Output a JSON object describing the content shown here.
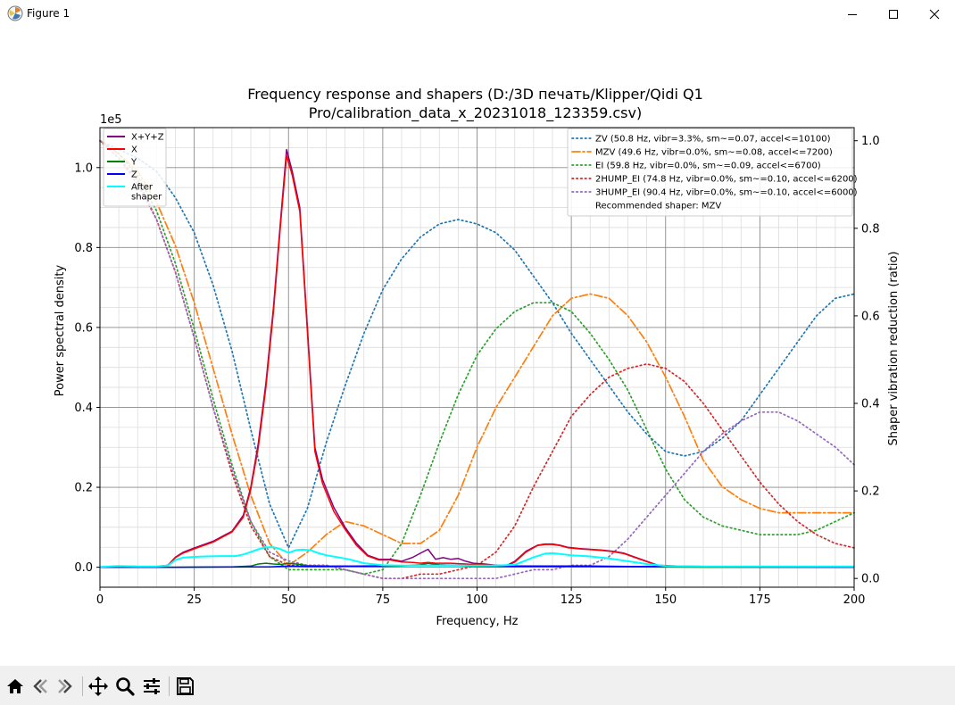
{
  "window": {
    "title": "Figure 1"
  },
  "toolbar": {
    "buttons": [
      "home-icon",
      "back-icon",
      "forward-icon",
      "pan-icon",
      "zoom-icon",
      "configure-subplots-icon",
      "save-icon"
    ]
  },
  "chart_data": {
    "type": "line",
    "title": "Frequency response and shapers (D:/3D печать/Klipper/Qidi Q1\nPro/calibration_data_x_20231018_123359.csv)",
    "xlabel": "Frequency, Hz",
    "ylabel": "Power spectral density",
    "y2label": "Shaper vibration reduction (ratio)",
    "yscale_label": "1e5",
    "xlim": [
      0,
      200
    ],
    "ylim": [
      -0.05,
      1.1
    ],
    "y2lim": [
      -0.02,
      1.03
    ],
    "xticks": [
      0,
      25,
      50,
      75,
      100,
      125,
      150,
      175,
      200
    ],
    "yticks": [
      0.0,
      0.2,
      0.4,
      0.6,
      0.8,
      1.0
    ],
    "y2ticks": [
      0.0,
      0.2,
      0.4,
      0.6,
      0.8,
      1.0
    ],
    "grid": true,
    "legend_left": {
      "placement": "upper-left",
      "entries": [
        {
          "label": "X+Y+Z",
          "color": "#800080"
        },
        {
          "label": "X",
          "color": "#ff0000"
        },
        {
          "label": "Y",
          "color": "#008000"
        },
        {
          "label": "Z",
          "color": "#0000ff"
        },
        {
          "label": "After\nshaper",
          "color": "#00ffff"
        }
      ]
    },
    "legend_right": {
      "placement": "upper-right",
      "entries": [
        {
          "label": "ZV (50.8 Hz, vibr=3.3%, sm~=0.07, accel<=10100)",
          "color": "#1f77b4",
          "style": "dotted"
        },
        {
          "label": "MZV (49.6 Hz, vibr=0.0%, sm~=0.08, accel<=7200)",
          "color": "#ff7f0e",
          "style": "dashdot"
        },
        {
          "label": "EI (59.8 Hz, vibr=0.0%, sm~=0.09, accel<=6700)",
          "color": "#2ca02c",
          "style": "dotted"
        },
        {
          "label": "2HUMP_EI (74.8 Hz, vibr=0.0%, sm~=0.10, accel<=6200)",
          "color": "#d62728",
          "style": "dotted"
        },
        {
          "label": "3HUMP_EI (90.4 Hz, vibr=0.0%, sm~=0.10, accel<=6000)",
          "color": "#9467bd",
          "style": "dotted"
        },
        {
          "label": "Recommended shaper: MZV",
          "color": "",
          "style": "none"
        }
      ]
    },
    "psd_series": [
      {
        "name": "X+Y+Z",
        "color": "#800080",
        "width": 1.5,
        "x": [
          0,
          5,
          10,
          15,
          18,
          20,
          22,
          25,
          30,
          35,
          38,
          40,
          42,
          44,
          46,
          48,
          49.5,
          51,
          53,
          55,
          57,
          59,
          62,
          65,
          68,
          71,
          74,
          77,
          80,
          83,
          85,
          87,
          89,
          91,
          93,
          95,
          97,
          99,
          102,
          105,
          108,
          110,
          113,
          116,
          118,
          120,
          122,
          124,
          127,
          130,
          133,
          136,
          139,
          142,
          145,
          148,
          150,
          153,
          160,
          170,
          180,
          190,
          200
        ],
        "y": [
          0.001,
          0.003,
          0.002,
          0.002,
          0.005,
          0.025,
          0.037,
          0.048,
          0.065,
          0.09,
          0.13,
          0.2,
          0.31,
          0.46,
          0.65,
          0.88,
          1.045,
          0.99,
          0.9,
          0.6,
          0.3,
          0.22,
          0.15,
          0.1,
          0.06,
          0.03,
          0.02,
          0.02,
          0.015,
          0.025,
          0.035,
          0.045,
          0.02,
          0.024,
          0.02,
          0.022,
          0.015,
          0.01,
          0.008,
          0.005,
          0.005,
          0.015,
          0.04,
          0.055,
          0.058,
          0.058,
          0.055,
          0.05,
          0.047,
          0.045,
          0.043,
          0.04,
          0.035,
          0.025,
          0.015,
          0.005,
          0.004,
          0.003,
          0.002,
          0.002,
          0.002,
          0.002,
          0.002
        ]
      },
      {
        "name": "X",
        "color": "#ff0000",
        "width": 1.5,
        "x": [
          0,
          5,
          10,
          15,
          18,
          20,
          22,
          25,
          30,
          35,
          38,
          40,
          42,
          44,
          46,
          48,
          49.5,
          51,
          53,
          55,
          57,
          59,
          62,
          65,
          68,
          71,
          74,
          77,
          80,
          83,
          85,
          87,
          89,
          91,
          93,
          95,
          97,
          99,
          102,
          105,
          108,
          110,
          113,
          116,
          118,
          120,
          122,
          124,
          127,
          130,
          133,
          136,
          139,
          142,
          145,
          148,
          150,
          153,
          160,
          170,
          180,
          190,
          200
        ],
        "y": [
          0.001,
          0.002,
          0.001,
          0.001,
          0.004,
          0.024,
          0.035,
          0.046,
          0.063,
          0.088,
          0.125,
          0.195,
          0.3,
          0.45,
          0.64,
          0.87,
          1.03,
          0.98,
          0.89,
          0.59,
          0.29,
          0.21,
          0.14,
          0.095,
          0.055,
          0.028,
          0.018,
          0.018,
          0.013,
          0.012,
          0.01,
          0.012,
          0.01,
          0.01,
          0.01,
          0.009,
          0.008,
          0.007,
          0.006,
          0.004,
          0.004,
          0.013,
          0.038,
          0.054,
          0.057,
          0.057,
          0.054,
          0.049,
          0.046,
          0.044,
          0.042,
          0.039,
          0.034,
          0.024,
          0.014,
          0.004,
          0.003,
          0.002,
          0.001,
          0.001,
          0.001,
          0.001,
          0.001
        ]
      },
      {
        "name": "Y",
        "color": "#008000",
        "width": 1.5,
        "x": [
          0,
          20,
          35,
          40,
          42,
          44,
          46,
          48,
          50,
          52,
          55,
          60,
          65,
          70,
          75,
          80,
          85,
          87,
          90,
          95,
          100,
          110,
          120,
          140,
          160,
          200
        ],
        "y": [
          0.0,
          0.0,
          0.001,
          0.003,
          0.008,
          0.01,
          0.008,
          0.007,
          0.01,
          0.008,
          0.004,
          0.003,
          0.003,
          0.002,
          0.002,
          0.003,
          0.006,
          0.01,
          0.006,
          0.004,
          0.002,
          0.001,
          0.001,
          0.001,
          0.0,
          0.0
        ]
      },
      {
        "name": "Z",
        "color": "#0000ff",
        "width": 1.5,
        "x": [
          0,
          20,
          40,
          45,
          50,
          55,
          60,
          70,
          80,
          90,
          100,
          110,
          120,
          130,
          140,
          150,
          160,
          200
        ],
        "y": [
          0.0,
          0.0,
          0.001,
          0.001,
          0.003,
          0.002,
          0.002,
          0.003,
          0.004,
          0.005,
          0.004,
          0.003,
          0.003,
          0.003,
          0.002,
          0.002,
          0.001,
          0.0
        ]
      },
      {
        "name": "After\nshaper",
        "color": "#00ffff",
        "width": 2.0,
        "x": [
          0,
          5,
          10,
          15,
          18,
          20,
          22,
          25,
          28,
          32,
          36,
          38,
          40,
          42,
          44,
          46,
          48,
          50,
          52,
          54,
          56,
          58,
          60,
          63,
          66,
          70,
          75,
          80,
          85,
          90,
          95,
          100,
          105,
          110,
          115,
          118,
          120,
          122,
          125,
          130,
          135,
          140,
          145,
          150,
          160,
          170,
          180,
          190,
          200
        ],
        "y": [
          0.001,
          0.003,
          0.002,
          0.002,
          0.004,
          0.018,
          0.024,
          0.026,
          0.027,
          0.028,
          0.028,
          0.032,
          0.038,
          0.045,
          0.05,
          0.05,
          0.045,
          0.036,
          0.043,
          0.044,
          0.042,
          0.035,
          0.03,
          0.025,
          0.02,
          0.01,
          0.005,
          0.004,
          0.004,
          0.004,
          0.004,
          0.004,
          0.004,
          0.006,
          0.025,
          0.034,
          0.035,
          0.033,
          0.03,
          0.027,
          0.022,
          0.015,
          0.008,
          0.003,
          0.002,
          0.002,
          0.002,
          0.002,
          0.002
        ]
      }
    ],
    "shaper_series": [
      {
        "name": "ZV (50.8 Hz, vibr=3.3%, sm~=0.07, accel<=10100)",
        "color": "#1f77b4",
        "style": "dotted",
        "x": [
          0,
          5,
          10,
          15,
          20,
          25,
          30,
          35,
          40,
          45,
          50,
          55,
          60,
          65,
          70,
          75,
          80,
          85,
          90,
          95,
          100,
          105,
          110,
          115,
          120,
          125,
          130,
          135,
          140,
          145,
          150,
          155,
          160,
          165,
          170,
          175,
          180,
          185,
          190,
          195,
          200
        ],
        "y": [
          1.0,
          0.98,
          0.96,
          0.93,
          0.87,
          0.79,
          0.67,
          0.52,
          0.34,
          0.17,
          0.07,
          0.16,
          0.31,
          0.44,
          0.56,
          0.66,
          0.73,
          0.78,
          0.81,
          0.82,
          0.81,
          0.79,
          0.75,
          0.69,
          0.63,
          0.56,
          0.5,
          0.44,
          0.38,
          0.33,
          0.29,
          0.28,
          0.29,
          0.32,
          0.36,
          0.42,
          0.48,
          0.54,
          0.6,
          0.64,
          0.65
        ]
      },
      {
        "name": "MZV (49.6 Hz, vibr=0.0%, sm~=0.08, accel<=7200)",
        "color": "#ff7f0e",
        "style": "dashdot",
        "x": [
          0,
          5,
          10,
          15,
          20,
          25,
          30,
          35,
          40,
          45,
          50,
          55,
          60,
          65,
          70,
          75,
          80,
          85,
          90,
          95,
          100,
          105,
          110,
          115,
          120,
          125,
          130,
          135,
          140,
          145,
          150,
          155,
          160,
          165,
          170,
          175,
          180,
          185,
          190,
          195,
          200
        ],
        "y": [
          1.0,
          0.97,
          0.93,
          0.86,
          0.76,
          0.63,
          0.48,
          0.33,
          0.19,
          0.08,
          0.03,
          0.06,
          0.1,
          0.13,
          0.12,
          0.1,
          0.08,
          0.08,
          0.11,
          0.19,
          0.3,
          0.39,
          0.46,
          0.53,
          0.6,
          0.64,
          0.65,
          0.64,
          0.6,
          0.54,
          0.46,
          0.37,
          0.27,
          0.21,
          0.18,
          0.16,
          0.15,
          0.15,
          0.15,
          0.15,
          0.15
        ]
      },
      {
        "name": "EI (59.8 Hz, vibr=0.0%, sm~=0.09, accel<=6700)",
        "color": "#2ca02c",
        "style": "dotted",
        "x": [
          0,
          5,
          10,
          15,
          20,
          25,
          30,
          35,
          40,
          45,
          50,
          55,
          60,
          65,
          70,
          75,
          80,
          85,
          90,
          95,
          100,
          105,
          110,
          115,
          120,
          125,
          130,
          135,
          140,
          145,
          150,
          155,
          160,
          165,
          170,
          175,
          180,
          185,
          190,
          195,
          200
        ],
        "y": [
          1.0,
          0.97,
          0.92,
          0.84,
          0.72,
          0.57,
          0.41,
          0.26,
          0.13,
          0.05,
          0.02,
          0.02,
          0.02,
          0.02,
          0.01,
          0.02,
          0.08,
          0.19,
          0.31,
          0.42,
          0.51,
          0.57,
          0.61,
          0.63,
          0.63,
          0.61,
          0.56,
          0.5,
          0.43,
          0.34,
          0.25,
          0.18,
          0.14,
          0.12,
          0.11,
          0.1,
          0.1,
          0.1,
          0.11,
          0.13,
          0.15
        ]
      },
      {
        "name": "2HUMP_EI (74.8 Hz, vibr=0.0%, sm~=0.10, accel<=6200)",
        "color": "#d62728",
        "style": "dotted",
        "x": [
          0,
          5,
          10,
          15,
          20,
          25,
          30,
          35,
          40,
          45,
          50,
          55,
          60,
          65,
          70,
          75,
          80,
          85,
          90,
          95,
          100,
          105,
          110,
          115,
          120,
          125,
          130,
          135,
          140,
          145,
          150,
          155,
          160,
          165,
          170,
          175,
          180,
          185,
          190,
          195,
          200
        ],
        "y": [
          1.0,
          0.96,
          0.91,
          0.82,
          0.7,
          0.55,
          0.39,
          0.24,
          0.12,
          0.05,
          0.03,
          0.03,
          0.03,
          0.02,
          0.01,
          0.0,
          0.0,
          0.01,
          0.01,
          0.02,
          0.03,
          0.06,
          0.12,
          0.21,
          0.29,
          0.37,
          0.42,
          0.46,
          0.48,
          0.49,
          0.48,
          0.45,
          0.4,
          0.34,
          0.28,
          0.22,
          0.17,
          0.13,
          0.1,
          0.08,
          0.07
        ]
      },
      {
        "name": "3HUMP_EI (90.4 Hz, vibr=0.0%, sm~=0.10, accel<=6000)",
        "color": "#9467bd",
        "style": "dotted",
        "x": [
          0,
          5,
          10,
          15,
          20,
          25,
          30,
          35,
          40,
          45,
          50,
          55,
          60,
          65,
          70,
          75,
          80,
          85,
          90,
          95,
          100,
          105,
          110,
          115,
          120,
          125,
          130,
          135,
          140,
          145,
          150,
          155,
          160,
          165,
          170,
          175,
          180,
          185,
          190,
          195,
          200
        ],
        "y": [
          1.0,
          0.96,
          0.9,
          0.82,
          0.7,
          0.55,
          0.39,
          0.25,
          0.13,
          0.06,
          0.04,
          0.03,
          0.03,
          0.02,
          0.01,
          0.0,
          0.0,
          0.0,
          0.0,
          0.0,
          0.0,
          0.0,
          0.01,
          0.02,
          0.02,
          0.03,
          0.03,
          0.05,
          0.09,
          0.14,
          0.19,
          0.24,
          0.29,
          0.33,
          0.36,
          0.38,
          0.38,
          0.36,
          0.33,
          0.3,
          0.26
        ]
      }
    ]
  }
}
